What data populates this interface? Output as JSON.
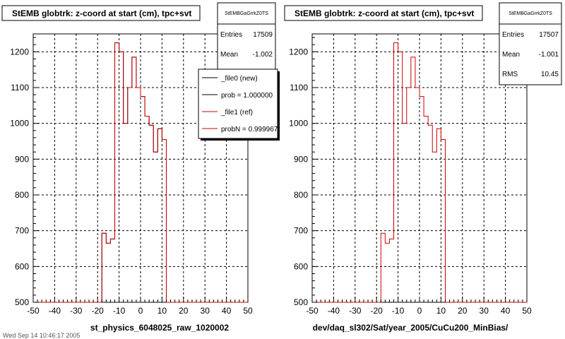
{
  "colors": {
    "new": "#000000",
    "ref": "#cc0000",
    "grid": "#000000",
    "background": "#ffffff"
  },
  "footer_text": "Wed Sep 14 10:46:17 2005",
  "legend": {
    "items": [
      {
        "label": "_file0 (new)",
        "color": "#000000"
      },
      {
        "label": "prob = 1.000000",
        "color": "#000000"
      },
      {
        "label": "_file1 (ref)",
        "color": "#cc0000"
      },
      {
        "label": "probN = 0.999967",
        "color": "#cc0000"
      }
    ]
  },
  "panels": [
    {
      "title": "StEMB globtrk: z-coord at start (cm), tpc+svt",
      "stats": {
        "name": "StEMBGaGrrkZ0TS",
        "entries_label": "Entries",
        "entries": "17509",
        "mean_label": "Mean",
        "mean": "-1.002"
      },
      "xtitle": "st_physics_6048025_raw_1020002"
    },
    {
      "title": "StEMB globtrk: z-coord at start (cm), tpc+svt",
      "stats": {
        "name": "StEMBGaGrrkZ0TS",
        "entries_label": "Entries",
        "entries": "17507",
        "mean_label": "Mean",
        "mean": "-1.001",
        "rms_label": "RMS",
        "rms": "10.45"
      },
      "xtitle": "dev/daq_sl302/Sat/year_2005/CuCu200_MinBias/"
    }
  ],
  "chart_data": [
    {
      "type": "line",
      "title": "StEMB globtrk: z-coord at start (cm), tpc+svt",
      "xlabel": "st_physics_6048025_raw_1020002",
      "ylabel": "",
      "xlim": [
        -50,
        50
      ],
      "ylim": [
        500,
        1250
      ],
      "grid": true,
      "legend_position": "top-right",
      "x_ticks": [
        -50,
        -40,
        -30,
        -20,
        -10,
        0,
        10,
        20,
        30,
        40,
        50
      ],
      "y_ticks": [
        500,
        600,
        700,
        800,
        900,
        1000,
        1100,
        1200
      ],
      "bin_edges": [
        -50,
        -18,
        -16,
        -14,
        -12,
        -10,
        -8,
        -6,
        -4,
        -2,
        0,
        2,
        4,
        6,
        8,
        10,
        12,
        50
      ],
      "series": [
        {
          "name": "_file0 (new)",
          "values": [
            500,
            693,
            665,
            677,
            1225,
            1200,
            1000,
            1100,
            1185,
            1100,
            1075,
            1020,
            995,
            920,
            985,
            955,
            500
          ]
        },
        {
          "name": "_file1 (ref)",
          "values": [
            500,
            693,
            665,
            677,
            1225,
            1200,
            1000,
            1100,
            1185,
            1100,
            1075,
            1020,
            995,
            920,
            985,
            955,
            500
          ]
        }
      ]
    },
    {
      "type": "line",
      "title": "StEMB globtrk: z-coord at start (cm), tpc+svt",
      "xlabel": "dev/daq_sl302/Sat/year_2005/CuCu200_MinBias/",
      "ylabel": "",
      "xlim": [
        -50,
        50
      ],
      "ylim": [
        500,
        1250
      ],
      "grid": true,
      "x_ticks": [
        -50,
        -40,
        -30,
        -20,
        -10,
        0,
        10,
        20,
        30,
        40,
        50
      ],
      "y_ticks": [
        500,
        600,
        700,
        800,
        900,
        1000,
        1100,
        1200
      ],
      "bin_edges": [
        -50,
        -18,
        -16,
        -14,
        -12,
        -10,
        -8,
        -6,
        -4,
        -2,
        0,
        2,
        4,
        6,
        8,
        10,
        12,
        50
      ],
      "series": [
        {
          "values": [
            500,
            693,
            665,
            677,
            1225,
            1200,
            1000,
            1100,
            1185,
            1100,
            1075,
            1020,
            995,
            920,
            985,
            955,
            500
          ]
        }
      ]
    }
  ]
}
